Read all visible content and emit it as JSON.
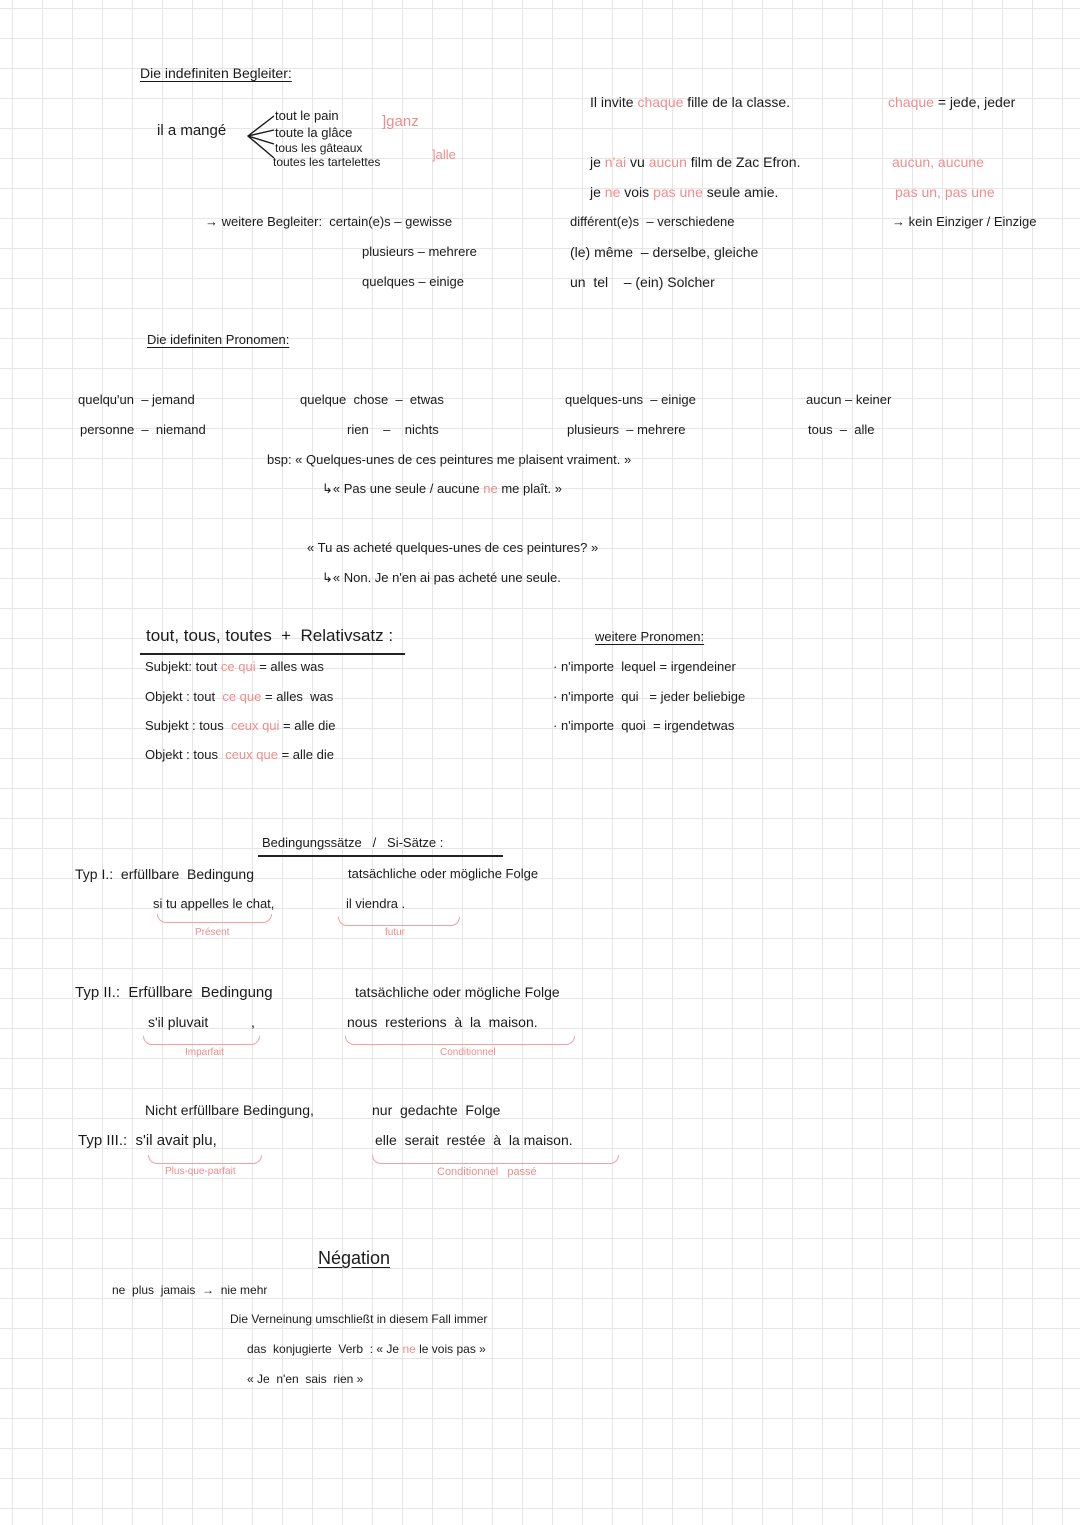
{
  "colors": {
    "ink": "#1a1a1a",
    "accent": "#f08c8c"
  },
  "lines": [
    {
      "segments": [
        {
          "text": "Die indefiniten Begleiter:"
        }
      ]
    },
    {
      "segments": [
        {
          "text": "il a mangé"
        }
      ]
    },
    {
      "segments": [
        {
          "text": "tout le pain"
        }
      ]
    },
    {
      "segments": [
        {
          "text": "toute la glâce"
        }
      ]
    },
    {
      "segments": [
        {
          "text": "tous les gâteaux"
        }
      ]
    },
    {
      "segments": [
        {
          "text": "toutes les tartelettes"
        }
      ]
    },
    {
      "segments": [
        {
          "text": "]ganz",
          "accent": true
        }
      ]
    },
    {
      "segments": [
        {
          "text": "]alle",
          "accent": true
        }
      ]
    },
    {
      "segments": [
        {
          "text": "→ weitere Begleiter:  certain(e)s – gewisse"
        }
      ]
    },
    {
      "segments": [
        {
          "text": "plusieurs – mehrere"
        }
      ]
    },
    {
      "segments": [
        {
          "text": "quelques – einige"
        }
      ]
    },
    {
      "segments": [
        {
          "text": "Il invite "
        },
        {
          "text": "chaque",
          "accent": true
        },
        {
          "text": " fille de la classe."
        }
      ]
    },
    {
      "segments": [
        {
          "text": "chaque",
          "accent": true
        },
        {
          "text": " = jede, jeder"
        }
      ]
    },
    {
      "segments": [
        {
          "text": "je "
        },
        {
          "text": "n'ai",
          "accent": true
        },
        {
          "text": " vu "
        },
        {
          "text": "aucun",
          "accent": true
        },
        {
          "text": " film de Zac Efron."
        }
      ]
    },
    {
      "segments": [
        {
          "text": "aucun, aucune",
          "accent": true
        }
      ]
    },
    {
      "segments": [
        {
          "text": "je "
        },
        {
          "text": "ne",
          "accent": true
        },
        {
          "text": " vois "
        },
        {
          "text": "pas une",
          "accent": true
        },
        {
          "text": " seule amie."
        }
      ]
    },
    {
      "segments": [
        {
          "text": "pas un, pas une",
          "accent": true
        }
      ]
    },
    {
      "segments": [
        {
          "text": "différent(e)s  – verschiedene"
        }
      ]
    },
    {
      "segments": [
        {
          "text": "→ kein Einziger / Einzige"
        }
      ]
    },
    {
      "segments": [
        {
          "text": "(le) même  – derselbe, gleiche"
        }
      ]
    },
    {
      "segments": [
        {
          "text": "un  tel    – (ein) Solcher"
        }
      ]
    },
    {
      "segments": [
        {
          "text": "Die idefiniten Pronomen:"
        }
      ]
    },
    {
      "segments": [
        {
          "text": "quelqu'un  – jemand"
        }
      ]
    },
    {
      "segments": [
        {
          "text": "quelque  chose  –  etwas"
        }
      ]
    },
    {
      "segments": [
        {
          "text": "quelques-uns  – einige"
        }
      ]
    },
    {
      "segments": [
        {
          "text": "aucun – keiner"
        }
      ]
    },
    {
      "segments": [
        {
          "text": "personne  –  niemand"
        }
      ]
    },
    {
      "segments": [
        {
          "text": "rien    –    nichts"
        }
      ]
    },
    {
      "segments": [
        {
          "text": "plusieurs  – mehrere"
        }
      ]
    },
    {
      "segments": [
        {
          "text": "tous  –  alle"
        }
      ]
    },
    {
      "segments": [
        {
          "text": "bsp: « Quelques-unes de ces peintures me plaisent vraiment. »"
        }
      ]
    },
    {
      "segments": [
        {
          "text": "↳« Pas une seule / aucune "
        },
        {
          "text": "ne",
          "accent": true
        },
        {
          "text": " me plaît. »"
        }
      ]
    },
    {
      "segments": [
        {
          "text": "« Tu as acheté quelques-unes de ces peintures? »"
        }
      ]
    },
    {
      "segments": [
        {
          "text": "↳« Non. Je n'en ai pas acheté une seule."
        }
      ]
    },
    {
      "segments": [
        {
          "text": "tout, tous, toutes  +  Relativsatz :"
        }
      ]
    },
    {
      "segments": [
        {
          "text": "Subjekt: tout "
        },
        {
          "text": "ce qui",
          "accent": true
        },
        {
          "text": " = alles was"
        }
      ]
    },
    {
      "segments": [
        {
          "text": "Objekt : tout  "
        },
        {
          "text": "ce que",
          "accent": true
        },
        {
          "text": " = alles  was"
        }
      ]
    },
    {
      "segments": [
        {
          "text": "Subjekt : tous  "
        },
        {
          "text": "ceux qui",
          "accent": true
        },
        {
          "text": " = alle die"
        }
      ]
    },
    {
      "segments": [
        {
          "text": "Objekt : tous  "
        },
        {
          "text": "ceux que",
          "accent": true
        },
        {
          "text": " = alle die"
        }
      ]
    },
    {
      "segments": [
        {
          "text": "weitere Pronomen:"
        }
      ]
    },
    {
      "segments": [
        {
          "text": "· n'importe  lequel = irgendeiner"
        }
      ]
    },
    {
      "segments": [
        {
          "text": "· n'importe  qui   = jeder beliebige"
        }
      ]
    },
    {
      "segments": [
        {
          "text": "· n'importe  quoi  = irgendetwas"
        }
      ]
    },
    {
      "segments": [
        {
          "text": "Bedingungssätze   /   Si-Sätze :"
        }
      ]
    },
    {
      "segments": [
        {
          "text": "Typ I.:  erfüllbare  Bedingung"
        }
      ]
    },
    {
      "segments": [
        {
          "text": "tatsächliche oder mögliche Folge"
        }
      ]
    },
    {
      "segments": [
        {
          "text": "si tu appelles le chat,"
        }
      ]
    },
    {
      "segments": [
        {
          "text": "il viendra ."
        }
      ]
    },
    {
      "segments": [
        {
          "text": "Présent",
          "accent": true
        }
      ]
    },
    {
      "segments": [
        {
          "text": "futur",
          "accent": true
        }
      ]
    },
    {
      "segments": [
        {
          "text": "Typ II.:  Erfüllbare  Bedingung"
        }
      ]
    },
    {
      "segments": [
        {
          "text": "tatsächliche oder mögliche Folge"
        }
      ]
    },
    {
      "segments": [
        {
          "text": "s'il pluvait           ,"
        }
      ]
    },
    {
      "segments": [
        {
          "text": "nous  resterions  à  la  maison."
        }
      ]
    },
    {
      "segments": [
        {
          "text": "Imparfait",
          "accent": true
        }
      ]
    },
    {
      "segments": [
        {
          "text": "Conditionnel",
          "accent": true
        }
      ]
    },
    {
      "segments": [
        {
          "text": "Nicht erfüllbare Bedingung,"
        }
      ]
    },
    {
      "segments": [
        {
          "text": "nur  gedachte  Folge"
        }
      ]
    },
    {
      "segments": [
        {
          "text": "Typ III.:  s'il avait plu,"
        }
      ]
    },
    {
      "segments": [
        {
          "text": "elle  serait  restée  à  la maison."
        }
      ]
    },
    {
      "segments": [
        {
          "text": "Plus-que-parfait",
          "accent": true
        }
      ]
    },
    {
      "segments": [
        {
          "text": "Conditionnel   passé",
          "accent": true
        }
      ]
    },
    {
      "segments": [
        {
          "text": "Négation"
        }
      ]
    },
    {
      "segments": [
        {
          "text": "ne  plus  jamais  →  nie mehr"
        }
      ]
    },
    {
      "segments": [
        {
          "text": "Die Verneinung umschließt in diesem Fall immer"
        }
      ]
    },
    {
      "segments": [
        {
          "text": "das  konjugierte  Verb  : « Je "
        },
        {
          "text": "ne",
          "accent": true
        },
        {
          "text": " le vois pas »"
        }
      ]
    },
    {
      "segments": [
        {
          "text": "« Je  n'en  sais  rien »"
        }
      ]
    }
  ]
}
